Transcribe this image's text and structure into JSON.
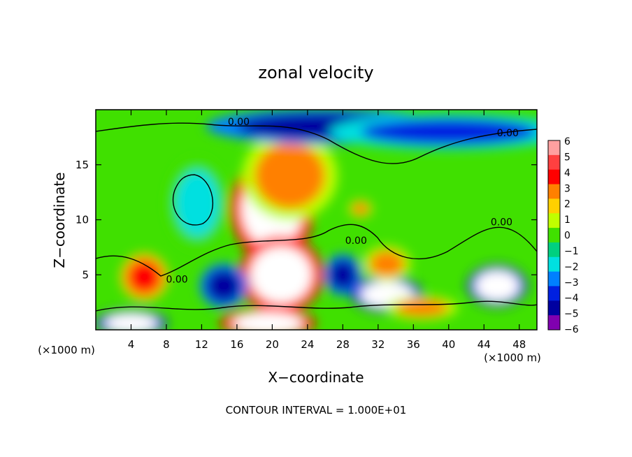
{
  "chart_data": {
    "type": "heatmap",
    "title": "zonal velocity",
    "xlabel": "X−coordinate",
    "ylabel": "Z−coordinate",
    "x_units": "(×1000 m)",
    "y_units": "(×1000 m)",
    "footer": "CONTOUR INTERVAL = 1.000E+01",
    "xlim": [
      0,
      50
    ],
    "ylim": [
      0,
      20
    ],
    "x_ticks": [
      4,
      8,
      12,
      16,
      20,
      24,
      28,
      32,
      36,
      40,
      44,
      48
    ],
    "y_ticks": [
      5,
      10,
      15
    ],
    "colorbar": {
      "ticks": [
        "6",
        "5",
        "4",
        "3",
        "2",
        "1",
        "0",
        "−1",
        "−2",
        "−3",
        "−4",
        "−5",
        "−6"
      ],
      "colors": [
        "#ffa0a0",
        "#ff4040",
        "#ff0000",
        "#ff8000",
        "#ffd000",
        "#c0ff00",
        "#40e000",
        "#00d080",
        "#00e0e0",
        "#0080ff",
        "#0020e0",
        "#0000a0",
        "#8000b0"
      ]
    },
    "contour_labels": [
      {
        "text": "0.00",
        "x": 16.2,
        "z": 18.6
      },
      {
        "text": "0.00",
        "x": 46.7,
        "z": 17.6
      },
      {
        "text": "0.00",
        "x": 9.2,
        "z": 4.3
      },
      {
        "text": "0.00",
        "x": 29.5,
        "z": 7.8
      },
      {
        "text": "0.00",
        "x": 46.0,
        "z": 9.5
      }
    ],
    "features": [
      {
        "x": 20.0,
        "z": 11.0,
        "value": 6.5,
        "rx": 3.5,
        "rz": 3.5
      },
      {
        "x": 22.0,
        "z": 14.0,
        "value": 3.5,
        "rx": 4.0,
        "rz": 3.0
      },
      {
        "x": 21.0,
        "z": 5.0,
        "value": 6.5,
        "rx": 3.5,
        "rz": 2.6
      },
      {
        "x": 5.5,
        "z": 4.8,
        "value": 4.0,
        "rx": 2.0,
        "rz": 1.6
      },
      {
        "x": 11.5,
        "z": 11.5,
        "value": -1.5,
        "rx": 2.5,
        "rz": 3.0
      },
      {
        "x": 26.0,
        "z": 18.5,
        "value": -5.0,
        "rx": 10.0,
        "rz": 1.2
      },
      {
        "x": 40.0,
        "z": 18.0,
        "value": -4.0,
        "rx": 10.0,
        "rz": 1.2
      },
      {
        "x": 14.5,
        "z": 4.0,
        "value": -5.0,
        "rx": 2.0,
        "rz": 1.5
      },
      {
        "x": 28.0,
        "z": 5.0,
        "value": -5.0,
        "rx": 1.6,
        "rz": 1.4
      },
      {
        "x": 33.0,
        "z": 3.2,
        "value": -6.5,
        "rx": 3.0,
        "rz": 1.2
      },
      {
        "x": 45.5,
        "z": 4.0,
        "value": -6.5,
        "rx": 2.5,
        "rz": 1.4
      },
      {
        "x": 4.0,
        "z": 0.6,
        "value": -6.5,
        "rx": 3.0,
        "rz": 0.9
      },
      {
        "x": 19.5,
        "z": 0.6,
        "value": 6.5,
        "rx": 4.0,
        "rz": 1.0
      },
      {
        "x": 33.0,
        "z": 6.0,
        "value": 3.5,
        "rx": 2.0,
        "rz": 1.2
      },
      {
        "x": 37.0,
        "z": 2.0,
        "value": 3.5,
        "rx": 3.0,
        "rz": 0.8
      },
      {
        "x": 30.0,
        "z": 11.0,
        "value": 3.0,
        "rx": 1.0,
        "rz": 0.6
      }
    ]
  }
}
